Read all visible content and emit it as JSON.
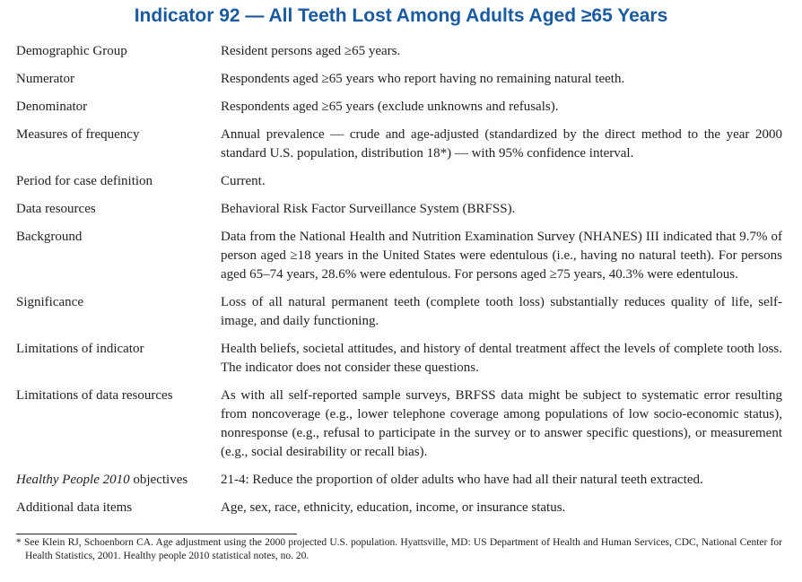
{
  "title": "Indicator 92 — All Teeth Lost Among Adults Aged ≥65 Years",
  "rows": [
    {
      "label": "Demographic Group",
      "text": "Resident persons aged ≥65 years."
    },
    {
      "label": "Numerator",
      "text": "Respondents aged ≥65 years who report having no remaining natural teeth."
    },
    {
      "label": "Denominator",
      "text": "Respondents aged ≥65 years (exclude unknowns and refusals)."
    },
    {
      "label": "Measures of frequency",
      "text": "Annual prevalence — crude and age-adjusted (standardized by the direct method to the year 2000 standard U.S. population, distribution 18*) — with 95% confidence interval."
    },
    {
      "label": "Period for case definition",
      "text": "Current."
    },
    {
      "label": "Data resources",
      "text": "Behavioral Risk Factor Surveillance System (BRFSS)."
    },
    {
      "label": "Background",
      "text": "Data from the National Health and Nutrition Examination Survey (NHANES) III indicated that 9.7% of person aged ≥18 years in the United States were edentulous (i.e., having no natural teeth). For persons aged 65–74 years, 28.6% were edentulous. For persons aged ≥75 years, 40.3% were edentulous."
    },
    {
      "label": "Significance",
      "text": "Loss of all natural permanent teeth (complete tooth loss) substantially reduces quality of life, self-image, and daily functioning."
    },
    {
      "label": "Limitations of indicator",
      "text": "Health beliefs, societal attitudes, and history of dental treatment affect the levels of complete tooth loss. The indicator does not consider these questions."
    },
    {
      "label": "Limitations of data resources",
      "text": "As with all self-reported sample surveys, BRFSS data might be subject to systematic error resulting from noncoverage (e.g., lower telephone coverage among populations of low socio-economic status), nonresponse (e.g., refusal to participate in the survey or to answer specific questions), or measurement (e.g., social desirability or recall bias)."
    },
    {
      "label_em": "Healthy People 2010",
      "label": "objectives",
      "text": "21-4: Reduce the proportion of older adults who have had all their natural teeth extracted."
    },
    {
      "label": "Additional data items",
      "text": "Age, sex, race, ethnicity, education, income, or insurance status."
    }
  ],
  "footnote": "* See Klein RJ, Schoenborn CA. Age adjustment using the 2000 projected U.S. population. Hyattsville, MD: US Department of Health and Human Services, CDC, National Center for Health Statistics, 2001. Healthy people 2010 statistical notes, no. 20."
}
